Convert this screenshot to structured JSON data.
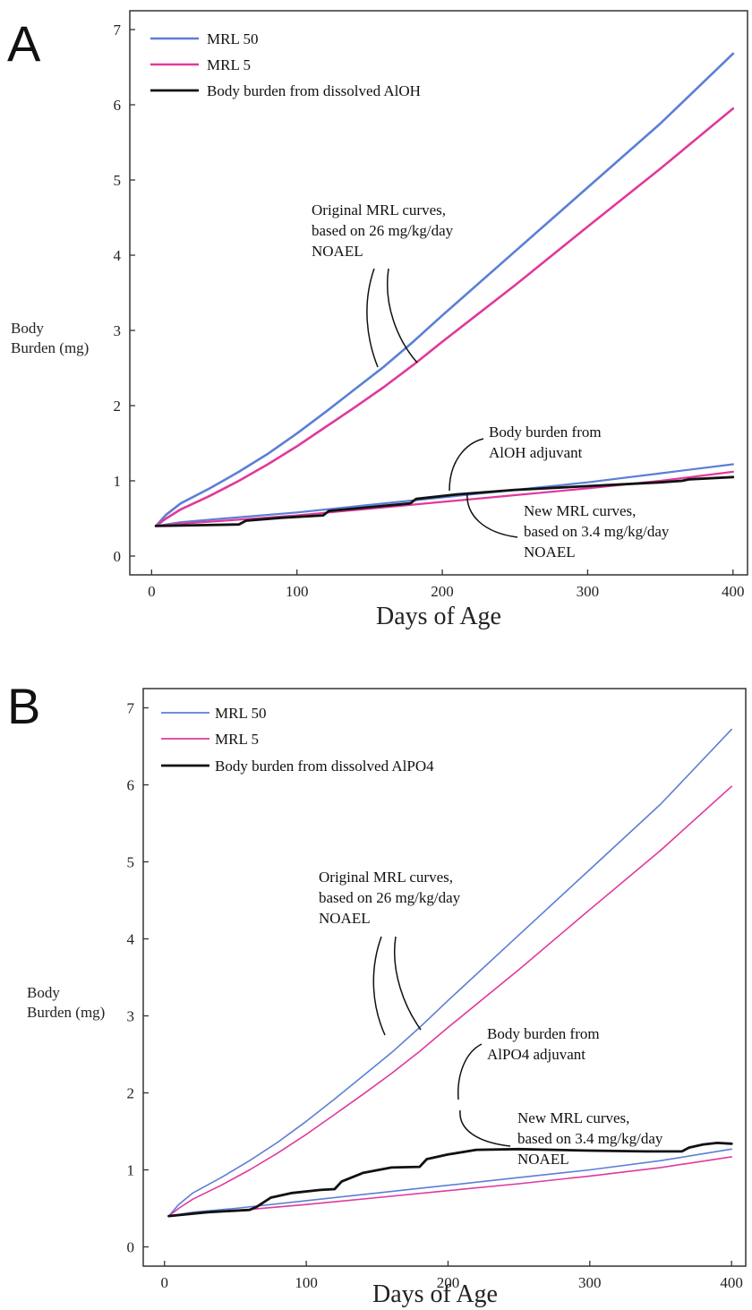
{
  "colors": {
    "mrl50": "#5b7fd6",
    "mrl5": "#e0399b",
    "burden": "#111111",
    "frame": "#333333"
  },
  "chart_data": [
    {
      "panel_label": "A",
      "type": "line",
      "xlabel": "Days of Age",
      "ylabel_lines": [
        "Body",
        "Burden (mg)"
      ],
      "xlim": [
        -15,
        410
      ],
      "ylim": [
        -0.25,
        7.25
      ],
      "xticks": [
        0,
        100,
        200,
        300,
        400
      ],
      "yticks": [
        0,
        1,
        2,
        3,
        4,
        5,
        6,
        7
      ],
      "legend": [
        "MRL 50",
        "MRL 5",
        "Body burden from dissolved AlOH"
      ],
      "annotations": [
        {
          "lines": [
            "Original MRL curves,",
            "based on 26 mg/kg/day",
            "NOAEL"
          ]
        },
        {
          "lines": [
            "Body burden from",
            "AlOH adjuvant"
          ]
        },
        {
          "lines": [
            "New MRL curves,",
            "based on 3.4 mg/kg/day",
            "NOAEL"
          ]
        }
      ],
      "series": [
        {
          "key": "mrl50_orig",
          "color_key": "mrl50",
          "width": 2.6,
          "x": [
            3,
            10,
            20,
            40,
            60,
            80,
            100,
            120,
            140,
            160,
            180,
            200,
            250,
            300,
            350,
            400
          ],
          "y": [
            0.4,
            0.55,
            0.7,
            0.9,
            1.12,
            1.36,
            1.63,
            1.92,
            2.22,
            2.52,
            2.85,
            3.2,
            4.05,
            4.9,
            5.75,
            6.68
          ]
        },
        {
          "key": "mrl5_orig",
          "color_key": "mrl5",
          "width": 2.6,
          "x": [
            3,
            10,
            20,
            40,
            60,
            80,
            100,
            120,
            140,
            160,
            180,
            200,
            250,
            300,
            350,
            400
          ],
          "y": [
            0.4,
            0.5,
            0.62,
            0.8,
            1.0,
            1.22,
            1.46,
            1.72,
            1.98,
            2.25,
            2.54,
            2.85,
            3.6,
            4.38,
            5.15,
            5.95
          ]
        },
        {
          "key": "mrl50_new",
          "color_key": "mrl50",
          "width": 2.2,
          "x": [
            3,
            20,
            50,
            100,
            150,
            200,
            250,
            300,
            350,
            400
          ],
          "y": [
            0.4,
            0.45,
            0.5,
            0.58,
            0.68,
            0.78,
            0.88,
            0.98,
            1.1,
            1.22
          ]
        },
        {
          "key": "mrl5_new",
          "color_key": "mrl5",
          "width": 2.2,
          "x": [
            3,
            20,
            50,
            100,
            150,
            200,
            250,
            300,
            350,
            400
          ],
          "y": [
            0.4,
            0.43,
            0.47,
            0.54,
            0.63,
            0.72,
            0.81,
            0.9,
            1.0,
            1.12
          ]
        },
        {
          "key": "burden",
          "color_key": "burden",
          "width": 2.8,
          "x": [
            3,
            30,
            60,
            65,
            90,
            118,
            122,
            150,
            178,
            182,
            210,
            250,
            300,
            350,
            365,
            370,
            400
          ],
          "y": [
            0.4,
            0.41,
            0.42,
            0.47,
            0.51,
            0.54,
            0.6,
            0.65,
            0.7,
            0.76,
            0.82,
            0.88,
            0.93,
            0.98,
            1.0,
            1.02,
            1.05
          ]
        }
      ]
    },
    {
      "panel_label": "B",
      "type": "line",
      "xlabel": "Days of Age",
      "ylabel_lines": [
        "Body",
        "Burden (mg)"
      ],
      "xlim": [
        -15,
        410
      ],
      "ylim": [
        -0.25,
        7.25
      ],
      "xticks": [
        0,
        100,
        200,
        300,
        400
      ],
      "yticks": [
        0,
        1,
        2,
        3,
        4,
        5,
        6,
        7
      ],
      "legend": [
        "MRL 50",
        "MRL 5",
        "Body burden from dissolved AlPO4"
      ],
      "annotations": [
        {
          "lines": [
            "Original MRL curves,",
            "based on 26 mg/kg/day",
            "NOAEL"
          ]
        },
        {
          "lines": [
            "Body burden from",
            "AlPO4 adjuvant"
          ]
        },
        {
          "lines": [
            "New MRL curves,",
            "based on 3.4 mg/kg/day",
            "NOAEL"
          ]
        }
      ],
      "series": [
        {
          "key": "mrl50_orig",
          "color_key": "mrl50",
          "width": 1.6,
          "x": [
            3,
            10,
            20,
            40,
            60,
            80,
            100,
            120,
            140,
            160,
            180,
            200,
            250,
            300,
            350,
            400
          ],
          "y": [
            0.4,
            0.55,
            0.7,
            0.9,
            1.12,
            1.36,
            1.63,
            1.92,
            2.22,
            2.52,
            2.85,
            3.2,
            4.05,
            4.9,
            5.75,
            6.72
          ]
        },
        {
          "key": "mrl5_orig",
          "color_key": "mrl5",
          "width": 1.6,
          "x": [
            3,
            10,
            20,
            40,
            60,
            80,
            100,
            120,
            140,
            160,
            180,
            200,
            250,
            300,
            350,
            400
          ],
          "y": [
            0.4,
            0.5,
            0.62,
            0.8,
            1.0,
            1.22,
            1.46,
            1.72,
            1.98,
            2.25,
            2.54,
            2.85,
            3.6,
            4.38,
            5.15,
            5.98
          ]
        },
        {
          "key": "mrl50_new",
          "color_key": "mrl50",
          "width": 1.6,
          "x": [
            3,
            20,
            50,
            100,
            150,
            200,
            250,
            300,
            350,
            400
          ],
          "y": [
            0.4,
            0.45,
            0.5,
            0.6,
            0.7,
            0.8,
            0.9,
            1.0,
            1.12,
            1.27
          ]
        },
        {
          "key": "mrl5_new",
          "color_key": "mrl5",
          "width": 1.6,
          "x": [
            3,
            20,
            50,
            100,
            150,
            200,
            250,
            300,
            350,
            400
          ],
          "y": [
            0.4,
            0.43,
            0.47,
            0.55,
            0.64,
            0.73,
            0.82,
            0.92,
            1.03,
            1.17
          ]
        },
        {
          "key": "burden",
          "color_key": "burden",
          "width": 2.8,
          "x": [
            3,
            30,
            60,
            65,
            75,
            90,
            110,
            120,
            125,
            140,
            160,
            180,
            185,
            200,
            220,
            250,
            300,
            340,
            365,
            370,
            380,
            390,
            400
          ],
          "y": [
            0.4,
            0.45,
            0.48,
            0.52,
            0.64,
            0.7,
            0.74,
            0.75,
            0.85,
            0.96,
            1.03,
            1.04,
            1.14,
            1.2,
            1.26,
            1.27,
            1.25,
            1.24,
            1.24,
            1.29,
            1.33,
            1.35,
            1.34
          ]
        }
      ]
    }
  ]
}
